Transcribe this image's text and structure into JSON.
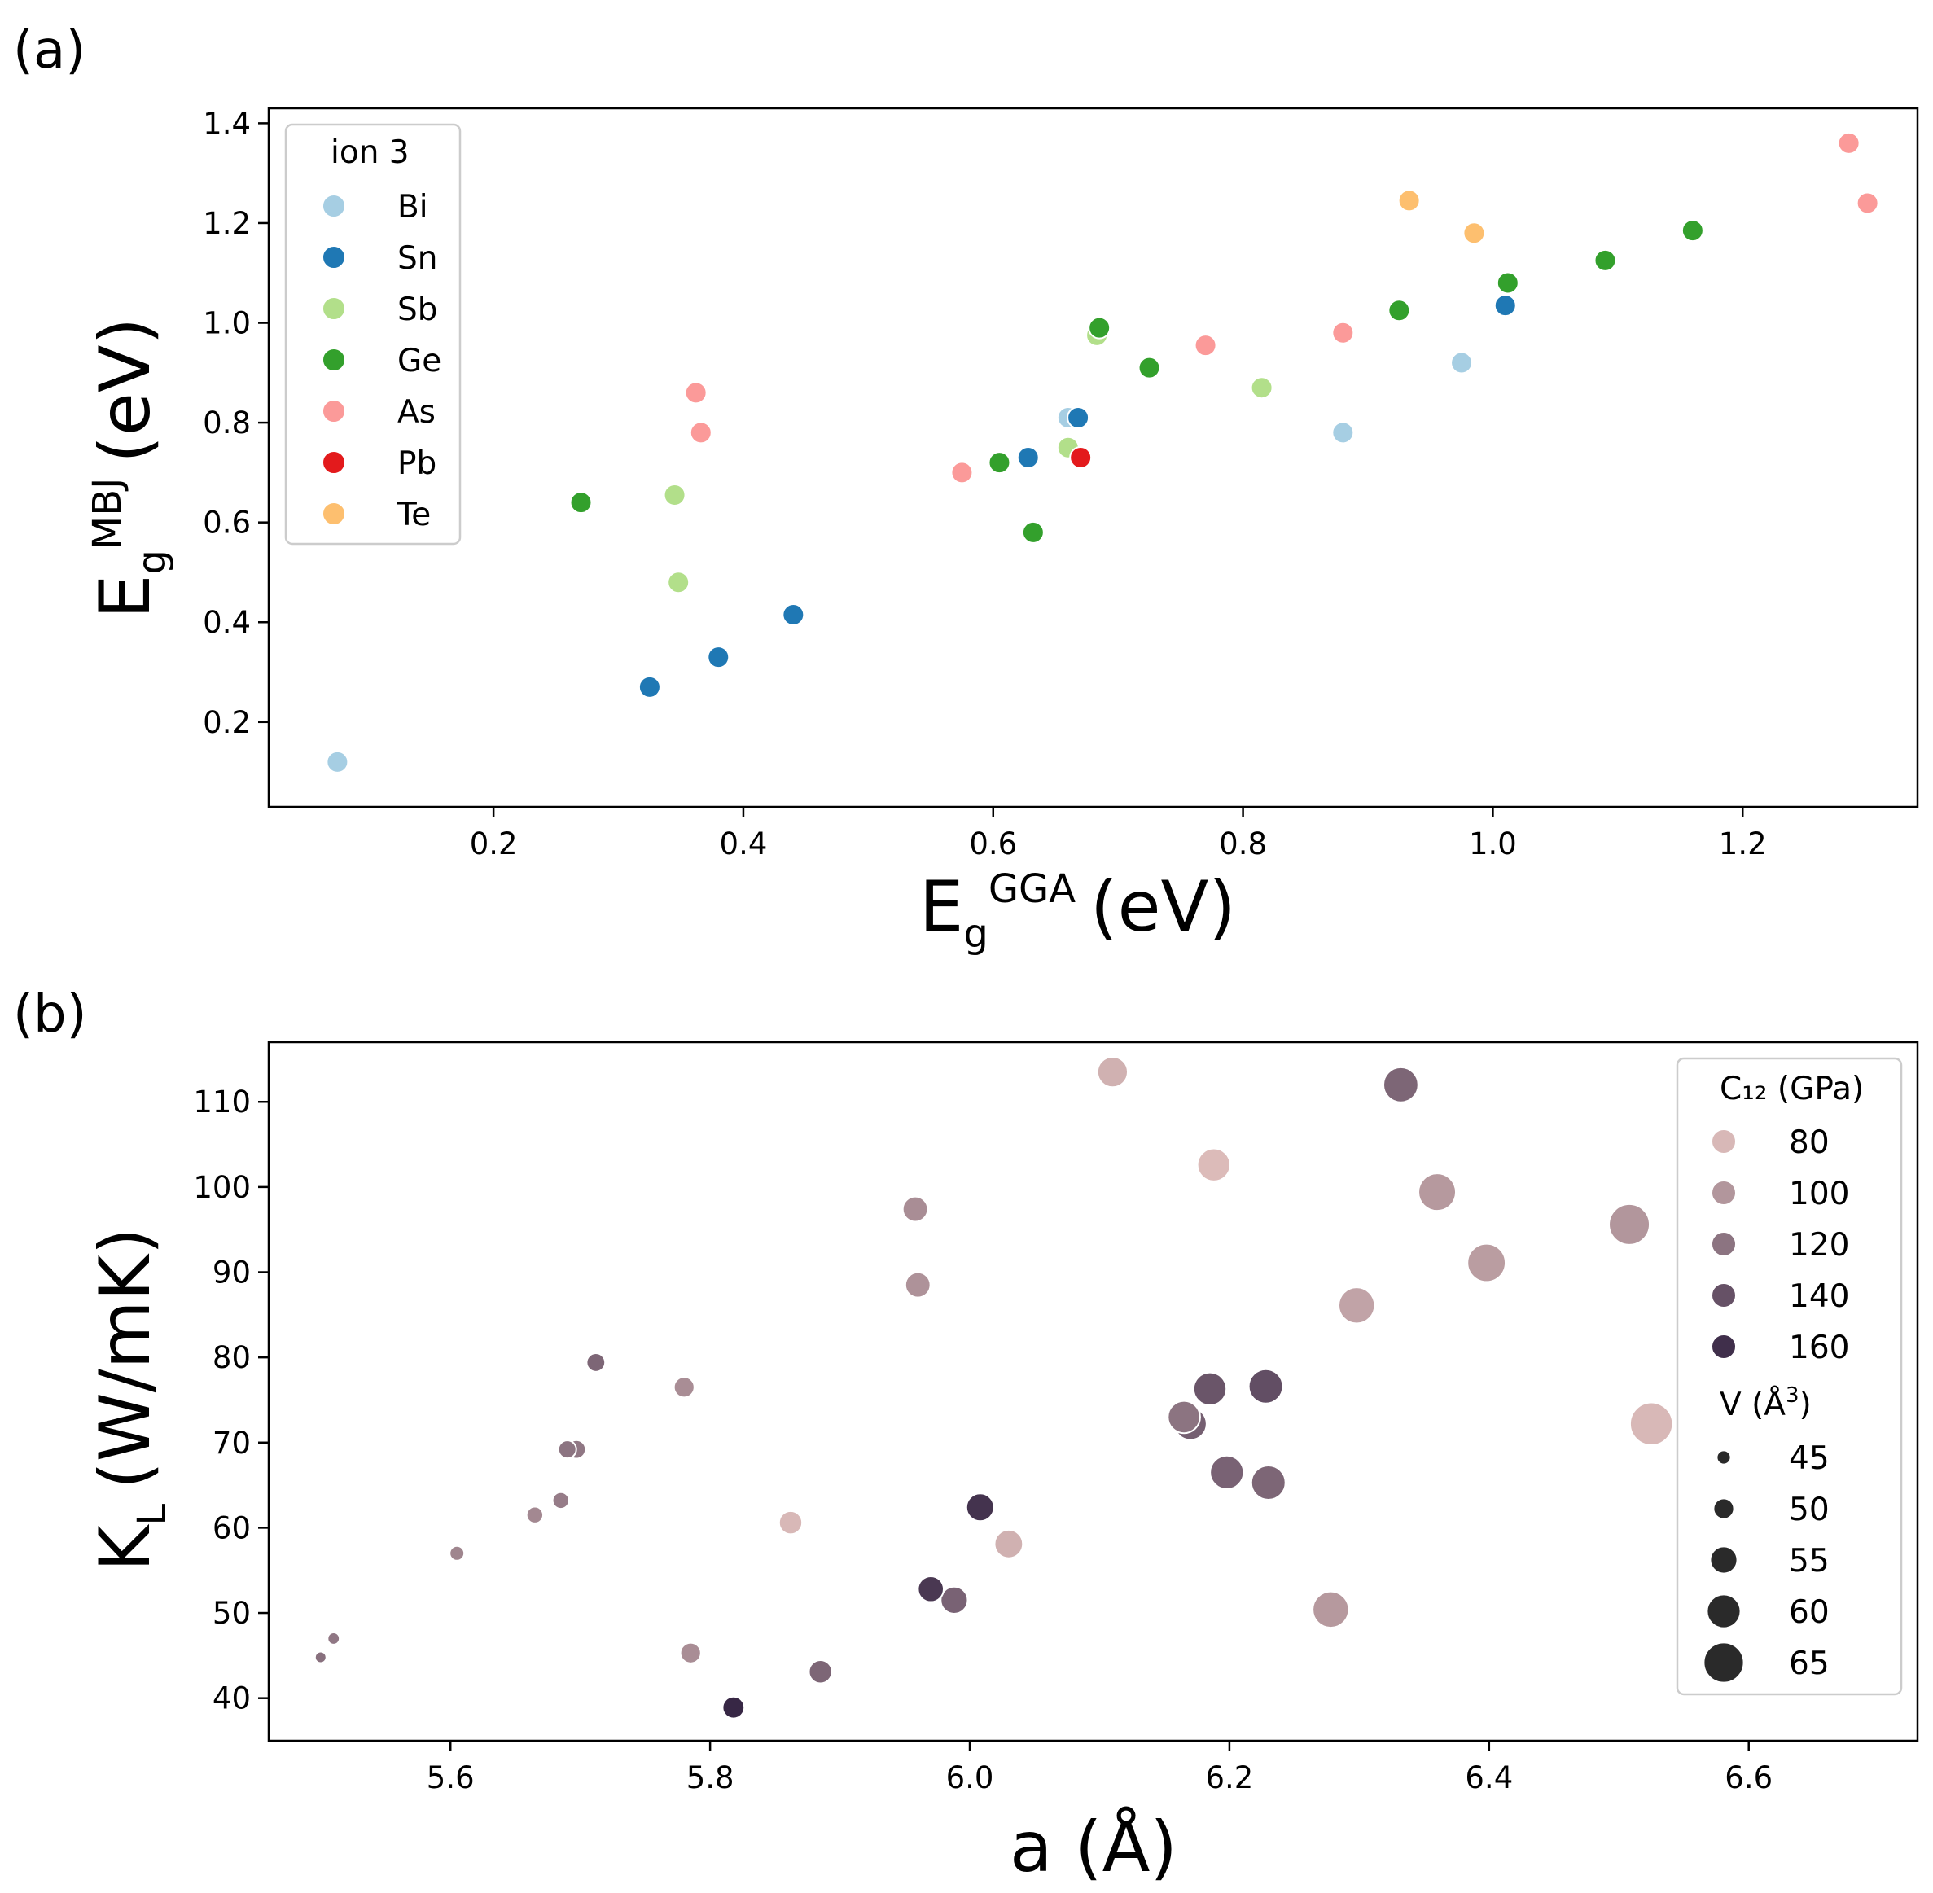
{
  "chart_data": [
    {
      "panel_label": "(a)",
      "type": "scatter",
      "xlabel": {
        "base": "E",
        "sub": "g",
        "sup": "GGA",
        "unit": "(eV)"
      },
      "ylabel": {
        "base": "E",
        "sub": "g",
        "sup": "MBJ",
        "unit": "(eV)"
      },
      "xlim": [
        0.02,
        1.34
      ],
      "ylim": [
        0.03,
        1.43
      ],
      "xticks": [
        "0.2",
        "0.4",
        "0.6",
        "0.8",
        "1.0",
        "1.2"
      ],
      "yticks": [
        "0.2",
        "0.4",
        "0.6",
        "0.8",
        "1.0",
        "1.2",
        "1.4"
      ],
      "grid": false,
      "legend": {
        "title": "ion 3",
        "placement": "upper-left",
        "entries": [
          {
            "label": "Bi",
            "color": "#a6cee3"
          },
          {
            "label": "Sn",
            "color": "#1f78b4"
          },
          {
            "label": "Sb",
            "color": "#b2df8a"
          },
          {
            "label": "Ge",
            "color": "#33a02c"
          },
          {
            "label": "As",
            "color": "#fb9a99"
          },
          {
            "label": "Pb",
            "color": "#e31a1c"
          },
          {
            "label": "Te",
            "color": "#fdbf6f"
          }
        ]
      },
      "series": [
        {
          "name": "Bi",
          "points": [
            [
              0.075,
              0.12
            ],
            [
              0.66,
              0.81
            ],
            [
              0.88,
              0.78
            ],
            [
              0.975,
              0.92
            ]
          ]
        },
        {
          "name": "Sn",
          "points": [
            [
              0.325,
              0.27
            ],
            [
              0.38,
              0.33
            ],
            [
              0.44,
              0.415
            ],
            [
              0.628,
              0.73
            ],
            [
              0.668,
              0.81
            ],
            [
              1.01,
              1.035
            ]
          ]
        },
        {
          "name": "Sb",
          "points": [
            [
              0.345,
              0.655
            ],
            [
              0.348,
              0.48
            ],
            [
              0.66,
              0.75
            ],
            [
              0.683,
              0.975
            ],
            [
              0.815,
              0.87
            ]
          ]
        },
        {
          "name": "Ge",
          "points": [
            [
              0.27,
              0.64
            ],
            [
              0.605,
              0.72
            ],
            [
              0.632,
              0.58
            ],
            [
              0.685,
              0.99
            ],
            [
              0.725,
              0.91
            ],
            [
              0.925,
              1.025
            ],
            [
              1.012,
              1.08
            ],
            [
              1.09,
              1.125
            ],
            [
              1.16,
              1.185
            ]
          ]
        },
        {
          "name": "As",
          "points": [
            [
              0.362,
              0.86
            ],
            [
              0.366,
              0.78
            ],
            [
              0.575,
              0.7
            ],
            [
              0.77,
              0.955
            ],
            [
              0.88,
              0.98
            ],
            [
              1.285,
              1.36
            ],
            [
              1.3,
              1.24
            ]
          ]
        },
        {
          "name": "Pb",
          "points": [
            [
              0.67,
              0.73
            ]
          ]
        },
        {
          "name": "Te",
          "points": [
            [
              0.933,
              1.245
            ],
            [
              0.985,
              1.18
            ]
          ]
        }
      ]
    },
    {
      "panel_label": "(b)",
      "type": "scatter",
      "xlabel": {
        "text": "a (Å)"
      },
      "ylabel": {
        "base": "K",
        "sub": "L",
        "unit": "(W/mK)"
      },
      "xlim": [
        5.46,
        6.73
      ],
      "ylim": [
        35,
        117
      ],
      "xticks": [
        "5.6",
        "5.8",
        "6.0",
        "6.2",
        "6.4",
        "6.6"
      ],
      "yticks": [
        "40",
        "50",
        "60",
        "70",
        "80",
        "90",
        "100",
        "110"
      ],
      "grid": false,
      "hue": {
        "name": "C12 (GPa)",
        "min": 70,
        "max": 170
      },
      "size": {
        "name": "V (Å3)",
        "min": 43,
        "max": 68
      },
      "legend": {
        "placement": "upper-right",
        "hue_title": "C₁₂ (GPa)",
        "hue_entries": [
          {
            "label": "80",
            "value": 80
          },
          {
            "label": "100",
            "value": 100
          },
          {
            "label": "120",
            "value": 120
          },
          {
            "label": "140",
            "value": 140
          },
          {
            "label": "160",
            "value": 160
          }
        ],
        "size_title": "V (Å",
        "size_title_sup": "3",
        "size_title_close": ")",
        "size_entries": [
          {
            "label": "45",
            "value": 45
          },
          {
            "label": "50",
            "value": 50
          },
          {
            "label": "55",
            "value": 55
          },
          {
            "label": "60",
            "value": 60
          },
          {
            "label": "65",
            "value": 65
          }
        ]
      },
      "points": [
        {
          "a": 5.5,
          "kl": 44.8,
          "c12": 122,
          "v": 43
        },
        {
          "a": 5.51,
          "kl": 47.0,
          "c12": 118,
          "v": 43.5
        },
        {
          "a": 5.605,
          "kl": 57.0,
          "c12": 110,
          "v": 45.5
        },
        {
          "a": 5.665,
          "kl": 61.5,
          "c12": 108,
          "v": 47
        },
        {
          "a": 5.685,
          "kl": 63.2,
          "c12": 115,
          "v": 47
        },
        {
          "a": 5.69,
          "kl": 69.2,
          "c12": 120,
          "v": 48
        },
        {
          "a": 5.697,
          "kl": 69.2,
          "c12": 118,
          "v": 48.5
        },
        {
          "a": 5.712,
          "kl": 79.4,
          "c12": 128,
          "v": 48.5
        },
        {
          "a": 5.78,
          "kl": 76.5,
          "c12": 105,
          "v": 50
        },
        {
          "a": 5.785,
          "kl": 45.3,
          "c12": 105,
          "v": 50
        },
        {
          "a": 5.818,
          "kl": 38.9,
          "c12": 165,
          "v": 51
        },
        {
          "a": 5.862,
          "kl": 60.6,
          "c12": 80,
          "v": 52
        },
        {
          "a": 5.885,
          "kl": 43.1,
          "c12": 128,
          "v": 52
        },
        {
          "a": 5.958,
          "kl": 97.4,
          "c12": 105,
          "v": 53.5
        },
        {
          "a": 5.96,
          "kl": 88.5,
          "c12": 102,
          "v": 53.5
        },
        {
          "a": 5.97,
          "kl": 52.8,
          "c12": 155,
          "v": 54
        },
        {
          "a": 5.988,
          "kl": 51.5,
          "c12": 130,
          "v": 55
        },
        {
          "a": 6.008,
          "kl": 62.4,
          "c12": 158,
          "v": 55.5
        },
        {
          "a": 6.03,
          "kl": 58.1,
          "c12": 84,
          "v": 56
        },
        {
          "a": 6.11,
          "kl": 113.5,
          "c12": 84,
          "v": 57.5
        },
        {
          "a": 6.17,
          "kl": 72.2,
          "c12": 132,
          "v": 59
        },
        {
          "a": 6.165,
          "kl": 73.0,
          "c12": 120,
          "v": 59
        },
        {
          "a": 6.185,
          "kl": 76.3,
          "c12": 138,
          "v": 59.5
        },
        {
          "a": 6.188,
          "kl": 102.6,
          "c12": 78,
          "v": 59.5
        },
        {
          "a": 6.198,
          "kl": 66.5,
          "c12": 130,
          "v": 60
        },
        {
          "a": 6.228,
          "kl": 76.6,
          "c12": 142,
          "v": 60.5
        },
        {
          "a": 6.23,
          "kl": 65.3,
          "c12": 128,
          "v": 60.5
        },
        {
          "a": 6.278,
          "kl": 50.4,
          "c12": 98,
          "v": 62
        },
        {
          "a": 6.298,
          "kl": 86.1,
          "c12": 92,
          "v": 62
        },
        {
          "a": 6.332,
          "kl": 112.0,
          "c12": 128,
          "v": 61
        },
        {
          "a": 6.36,
          "kl": 99.4,
          "c12": 98,
          "v": 63
        },
        {
          "a": 6.398,
          "kl": 91.1,
          "c12": 96,
          "v": 63.5
        },
        {
          "a": 6.508,
          "kl": 95.6,
          "c12": 100,
          "v": 65.5
        },
        {
          "a": 6.525,
          "kl": 72.2,
          "c12": 80,
          "v": 67
        }
      ]
    }
  ]
}
